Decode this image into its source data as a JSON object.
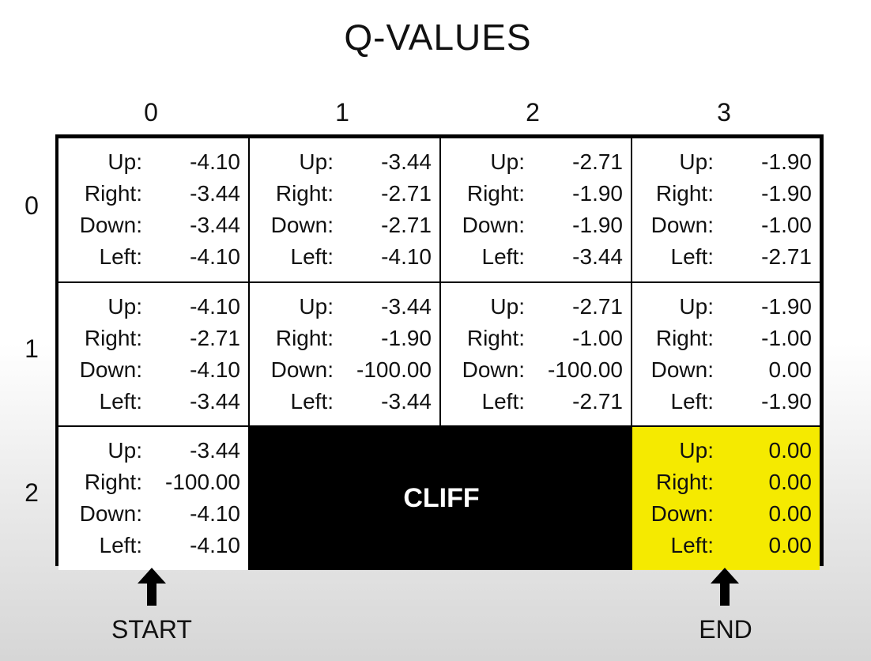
{
  "title": "Q-VALUES",
  "columns": [
    "0",
    "1",
    "2",
    "3"
  ],
  "rows": [
    "0",
    "1",
    "2"
  ],
  "action_labels": [
    "Up:",
    "Right:",
    "Down:",
    "Left:"
  ],
  "cells": [
    [
      {
        "values": [
          "-4.10",
          "-3.44",
          "-3.44",
          "-4.10"
        ]
      },
      {
        "values": [
          "-3.44",
          "-2.71",
          "-2.71",
          "-4.10"
        ]
      },
      {
        "values": [
          "-2.71",
          "-1.90",
          "-1.90",
          "-3.44"
        ]
      },
      {
        "values": [
          "-1.90",
          "-1.90",
          "-1.00",
          "-2.71"
        ]
      }
    ],
    [
      {
        "values": [
          "-4.10",
          "-2.71",
          "-4.10",
          "-3.44"
        ]
      },
      {
        "values": [
          "-3.44",
          "-1.90",
          "-100.00",
          "-3.44"
        ]
      },
      {
        "values": [
          "-2.71",
          "-1.00",
          "-100.00",
          "-2.71"
        ]
      },
      {
        "values": [
          "-1.90",
          "-1.00",
          "0.00",
          "-1.90"
        ]
      }
    ],
    [
      {
        "values": [
          "-3.44",
          "-100.00",
          "-4.10",
          "-4.10"
        ]
      },
      null,
      null,
      {
        "values": [
          "0.00",
          "0.00",
          "0.00",
          "0.00"
        ]
      }
    ]
  ],
  "cliff_label": "CLIFF",
  "start_label": "START",
  "end_label": "END",
  "colors": {
    "end_cell": "#f5ea00",
    "cliff": "#000000",
    "grid_line": "#000000"
  },
  "icons": {
    "start_marker": "up-arrow-icon",
    "end_marker": "up-arrow-icon"
  }
}
